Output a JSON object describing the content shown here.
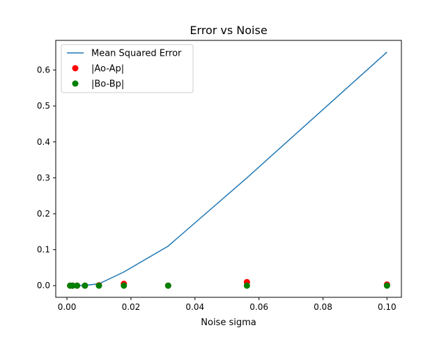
{
  "chart_data": {
    "type": "line",
    "title": "Error vs Noise",
    "xlabel": "Noise sigma",
    "ylabel": "",
    "xlim": [
      -0.0035,
      0.1045
    ],
    "ylim": [
      -0.0325,
      0.6825
    ],
    "xticks": [
      0.0,
      0.02,
      0.04,
      0.06,
      0.08,
      0.1
    ],
    "xtick_labels": [
      "0.00",
      "0.02",
      "0.04",
      "0.06",
      "0.08",
      "0.10"
    ],
    "yticks": [
      0.0,
      0.1,
      0.2,
      0.3,
      0.4,
      0.5,
      0.6
    ],
    "ytick_labels": [
      "0.0",
      "0.1",
      "0.2",
      "0.3",
      "0.4",
      "0.5",
      "0.6"
    ],
    "grid": false,
    "legend_position": "upper-left",
    "x": [
      0.001,
      0.00178,
      0.00316,
      0.00562,
      0.01,
      0.01778,
      0.03162,
      0.05623,
      0.1
    ],
    "series": [
      {
        "name": "Mean Squared Error",
        "kind": "line",
        "color": "#1f77b4",
        "values": [
          0.0,
          0.0,
          0.0,
          0.001,
          0.005,
          0.038,
          0.11,
          0.3,
          0.65
        ]
      },
      {
        "name": "|Ao-Ap|",
        "kind": "scatter",
        "color": "#ff0000",
        "values": [
          0.0,
          0.0,
          0.0,
          0.0,
          0.001,
          0.005,
          0.0,
          0.01,
          0.003
        ]
      },
      {
        "name": "|Bo-Bp|",
        "kind": "scatter",
        "color": "#008000",
        "values": [
          0.0,
          0.0,
          0.0,
          0.0,
          0.0,
          0.0,
          0.0,
          0.0,
          0.0
        ]
      }
    ]
  }
}
